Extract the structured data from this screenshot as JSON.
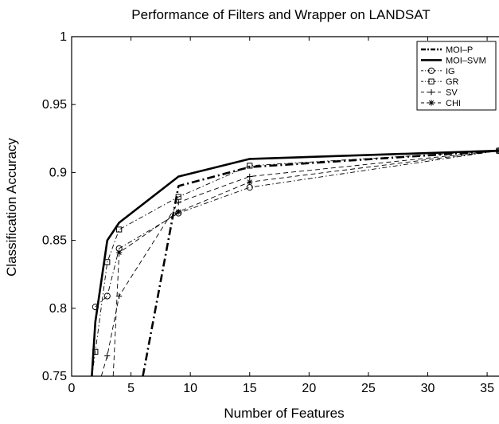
{
  "chart_data": {
    "type": "line",
    "title": "Performance of Filters and Wrapper on LANDSAT",
    "xlabel": "Number of Features",
    "ylabel": "Classification Accuracy",
    "xlim": [
      0,
      36
    ],
    "ylim": [
      0.75,
      1
    ],
    "xticks": [
      0,
      5,
      10,
      15,
      20,
      25,
      30,
      35
    ],
    "yticks": [
      0.75,
      0.8,
      0.85,
      0.9,
      0.95,
      1
    ],
    "xtick_labels": [
      "0",
      "5",
      "10",
      "15",
      "20",
      "25",
      "30",
      "35"
    ],
    "ytick_labels": [
      "0.75",
      "0.8",
      "0.85",
      "0.9",
      "0.95",
      "1"
    ],
    "grid": false,
    "legend_position": "top-right",
    "series": [
      {
        "name": "MOI–P",
        "style": "dashdot-thick",
        "marker": "none",
        "x": [
          6,
          9,
          15,
          36
        ],
        "y": [
          0.75,
          0.89,
          0.904,
          0.916
        ]
      },
      {
        "name": "MOI–SVM",
        "style": "solid-thick",
        "marker": "none",
        "x": [
          1.7,
          2,
          3,
          4,
          9,
          15,
          36
        ],
        "y": [
          0.75,
          0.79,
          0.85,
          0.863,
          0.897,
          0.91,
          0.916
        ]
      },
      {
        "name": "IG",
        "style": "dashdot",
        "marker": "circle",
        "x": [
          2,
          3,
          4,
          9,
          15,
          36
        ],
        "y": [
          0.801,
          0.809,
          0.844,
          0.87,
          0.889,
          0.916
        ]
      },
      {
        "name": "GR",
        "style": "dashdot",
        "marker": "square",
        "x": [
          1.7,
          2,
          3,
          4,
          9,
          15,
          36
        ],
        "y": [
          0.75,
          0.768,
          0.834,
          0.858,
          0.882,
          0.905,
          0.916
        ]
      },
      {
        "name": "SV",
        "style": "dashed",
        "marker": "plus",
        "x": [
          2.5,
          3,
          4,
          9,
          15,
          36
        ],
        "y": [
          0.75,
          0.765,
          0.809,
          0.878,
          0.897,
          0.916
        ]
      },
      {
        "name": "CHI",
        "style": "dashed",
        "marker": "star",
        "x": [
          3.5,
          4,
          9,
          15,
          36
        ],
        "y": [
          0.75,
          0.841,
          0.871,
          0.893,
          0.916
        ]
      }
    ]
  }
}
